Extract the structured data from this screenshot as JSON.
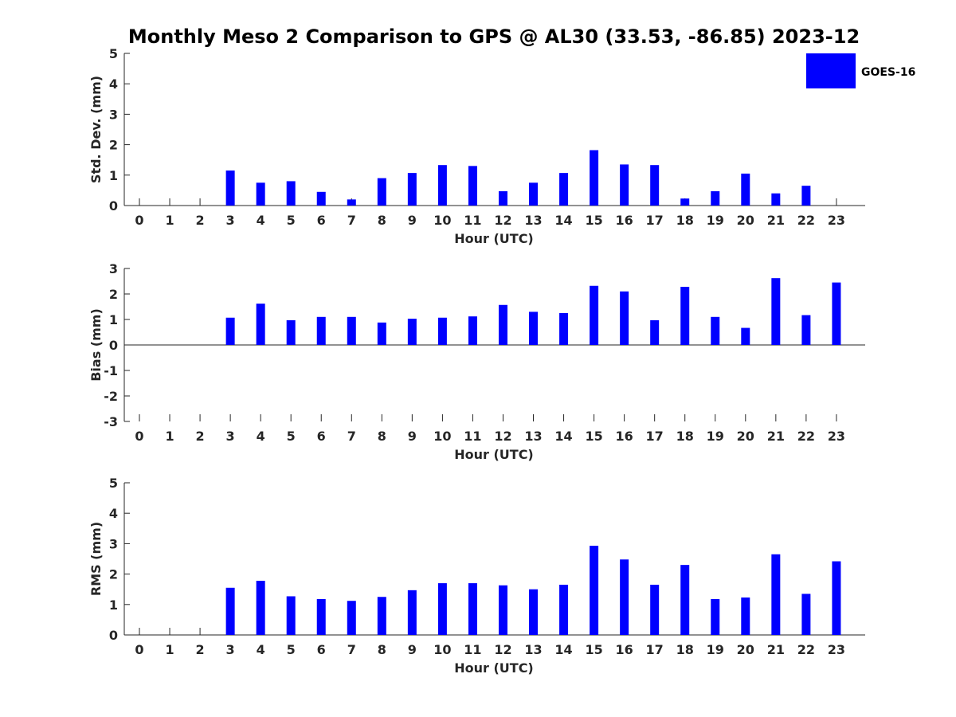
{
  "title": "Monthly Meso 2 Comparison to GPS @ AL30 (33.53, -86.85) 2023-12",
  "legend": {
    "label": "GOES-16",
    "color": "#0000ff",
    "placement": "top-right"
  },
  "chart_data": [
    {
      "type": "bar",
      "name": "std-dev",
      "xlabel": "Hour (UTC)",
      "ylabel": "Std. Dev. (mm)",
      "ylim": [
        0,
        5
      ],
      "yticks": [
        "0",
        "1",
        "2",
        "3",
        "4",
        "5"
      ],
      "categories": [
        "0",
        "1",
        "2",
        "3",
        "4",
        "5",
        "6",
        "7",
        "8",
        "9",
        "10",
        "11",
        "12",
        "13",
        "14",
        "15",
        "16",
        "17",
        "18",
        "19",
        "20",
        "21",
        "22",
        "23"
      ],
      "series": [
        {
          "name": "GOES-16",
          "values": [
            null,
            null,
            null,
            1.15,
            0.75,
            0.8,
            0.45,
            0.2,
            0.9,
            1.07,
            1.33,
            1.3,
            0.47,
            0.75,
            1.07,
            1.82,
            1.35,
            1.33,
            0.23,
            0.47,
            1.05,
            0.4,
            0.65,
            null
          ]
        }
      ],
      "grid": false
    },
    {
      "type": "bar",
      "name": "bias",
      "xlabel": "Hour (UTC)",
      "ylabel": "Bias (mm)",
      "ylim": [
        -3,
        3
      ],
      "yticks": [
        "-3",
        "-2",
        "-1",
        "0",
        "1",
        "2",
        "3"
      ],
      "categories": [
        "0",
        "1",
        "2",
        "3",
        "4",
        "5",
        "6",
        "7",
        "8",
        "9",
        "10",
        "11",
        "12",
        "13",
        "14",
        "15",
        "16",
        "17",
        "18",
        "19",
        "20",
        "21",
        "22",
        "23"
      ],
      "series": [
        {
          "name": "GOES-16",
          "values": [
            null,
            null,
            null,
            1.07,
            1.62,
            0.97,
            1.1,
            1.1,
            0.88,
            1.03,
            1.07,
            1.12,
            1.57,
            1.3,
            1.25,
            2.32,
            2.1,
            0.97,
            2.28,
            1.1,
            0.67,
            2.62,
            1.17,
            2.45
          ]
        }
      ],
      "grid": false
    },
    {
      "type": "bar",
      "name": "rms",
      "xlabel": "Hour (UTC)",
      "ylabel": "RMS (mm)",
      "ylim": [
        0,
        5
      ],
      "yticks": [
        "0",
        "1",
        "2",
        "3",
        "4",
        "5"
      ],
      "categories": [
        "0",
        "1",
        "2",
        "3",
        "4",
        "5",
        "6",
        "7",
        "8",
        "9",
        "10",
        "11",
        "12",
        "13",
        "14",
        "15",
        "16",
        "17",
        "18",
        "19",
        "20",
        "21",
        "22",
        "23"
      ],
      "series": [
        {
          "name": "GOES-16",
          "values": [
            null,
            null,
            null,
            1.55,
            1.78,
            1.27,
            1.18,
            1.12,
            1.25,
            1.47,
            1.7,
            1.7,
            1.63,
            1.5,
            1.65,
            2.93,
            2.48,
            1.65,
            2.3,
            1.18,
            1.23,
            2.65,
            1.35,
            2.42
          ]
        }
      ],
      "grid": false
    }
  ]
}
